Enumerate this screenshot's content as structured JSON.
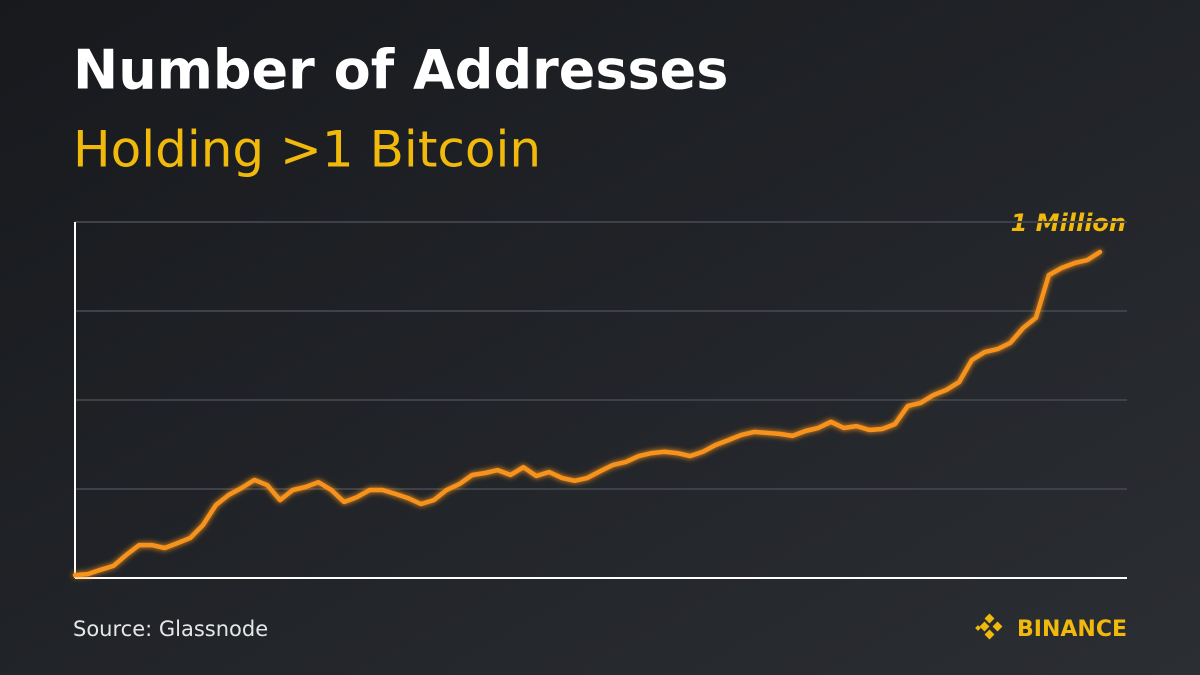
{
  "chart_data": {
    "type": "line",
    "title": "Number of Addresses",
    "subtitle": "Holding >1 Bitcoin",
    "annotation": "1 Million",
    "source": "Source: Glassnode",
    "brand": "BINANCE",
    "color": "#f7931a",
    "grid": true,
    "ylim": [
      0,
      1092000
    ],
    "yticks": [
      0,
      273000,
      546000,
      819000,
      1092000
    ],
    "values": [
      9000,
      12000,
      25000,
      37000,
      71000,
      101000,
      101000,
      92000,
      107000,
      123000,
      163000,
      224000,
      255000,
      276000,
      301000,
      285000,
      239000,
      270000,
      279000,
      294000,
      270000,
      233000,
      248000,
      270000,
      270000,
      258000,
      245000,
      227000,
      239000,
      270000,
      288000,
      316000,
      322000,
      331000,
      316000,
      340000,
      313000,
      325000,
      307000,
      298000,
      307000,
      328000,
      347000,
      356000,
      374000,
      383000,
      387000,
      383000,
      374000,
      387000,
      408000,
      423000,
      439000,
      448000,
      445000,
      442000,
      436000,
      451000,
      460000,
      479000,
      460000,
      466000,
      454000,
      457000,
      472000,
      528000,
      537000,
      561000,
      577000,
      601000,
      669000,
      693000,
      702000,
      721000,
      767000,
      798000,
      929000,
      951000,
      966000,
      975000,
      1000000
    ]
  }
}
